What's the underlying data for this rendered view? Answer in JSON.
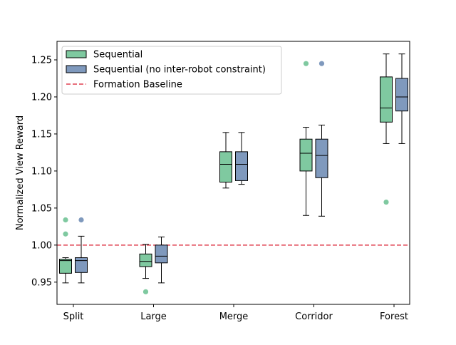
{
  "chart_data": {
    "type": "box",
    "categories": [
      "Split",
      "Large",
      "Merge",
      "Corridor",
      "Forest"
    ],
    "ylabel": "Normalized View Reward",
    "ylim": [
      0.92,
      1.275
    ],
    "yticks": [
      "0.95",
      "1.00",
      "1.05",
      "1.10",
      "1.15",
      "1.20",
      "1.25"
    ],
    "legend_position": "top-left",
    "baseline": {
      "name": "Formation Baseline",
      "value": 1.0,
      "color": "#e04050"
    },
    "series": [
      {
        "name": "Sequential",
        "color": "#7fc9a0",
        "boxes": [
          {
            "category": "Split",
            "whislo": 0.949,
            "q1": 0.962,
            "med": 0.979,
            "q3": 0.981,
            "whishi": 0.983,
            "fliers": [
              1.015,
              1.034
            ]
          },
          {
            "category": "Large",
            "whislo": 0.955,
            "q1": 0.971,
            "med": 0.978,
            "q3": 0.988,
            "whishi": 1.001,
            "fliers": [
              0.937
            ]
          },
          {
            "category": "Merge",
            "whislo": 1.077,
            "q1": 1.085,
            "med": 1.109,
            "q3": 1.126,
            "whishi": 1.152,
            "fliers": []
          },
          {
            "category": "Corridor",
            "whislo": 1.04,
            "q1": 1.1,
            "med": 1.124,
            "q3": 1.143,
            "whishi": 1.159,
            "fliers": [
              1.245
            ]
          },
          {
            "category": "Forest",
            "whislo": 1.137,
            "q1": 1.166,
            "med": 1.185,
            "q3": 1.227,
            "whishi": 1.258,
            "fliers": [
              1.058
            ]
          }
        ]
      },
      {
        "name": "Sequential (no inter-robot constraint)",
        "color": "#7f99bd",
        "boxes": [
          {
            "category": "Split",
            "whislo": 0.949,
            "q1": 0.963,
            "med": 0.979,
            "q3": 0.983,
            "whishi": 1.012,
            "fliers": [
              1.034
            ]
          },
          {
            "category": "Large",
            "whislo": 0.949,
            "q1": 0.976,
            "med": 0.985,
            "q3": 1.0,
            "whishi": 1.011,
            "fliers": []
          },
          {
            "category": "Merge",
            "whislo": 1.082,
            "q1": 1.087,
            "med": 1.109,
            "q3": 1.126,
            "whishi": 1.152,
            "fliers": []
          },
          {
            "category": "Corridor",
            "whislo": 1.039,
            "q1": 1.091,
            "med": 1.121,
            "q3": 1.143,
            "whishi": 1.162,
            "fliers": [
              1.245
            ]
          },
          {
            "category": "Forest",
            "whislo": 1.137,
            "q1": 1.181,
            "med": 1.2,
            "q3": 1.225,
            "whishi": 1.258,
            "fliers": []
          }
        ]
      }
    ]
  }
}
